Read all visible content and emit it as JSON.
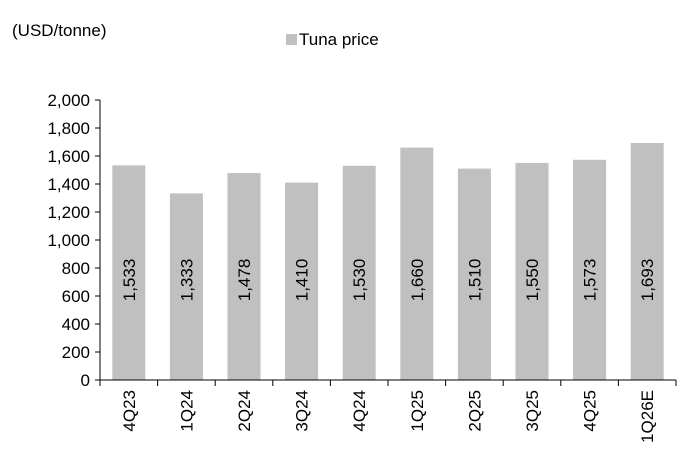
{
  "chart_data": {
    "type": "bar",
    "unit_label": "(USD/tonne)",
    "categories": [
      "4Q23",
      "1Q24",
      "2Q24",
      "3Q24",
      "4Q24",
      "1Q25",
      "2Q25",
      "3Q25",
      "4Q25",
      "1Q26E"
    ],
    "series": [
      {
        "name": "Tuna price",
        "color": "#c0c0c0",
        "values": [
          1533,
          1333,
          1478,
          1410,
          1530,
          1660,
          1510,
          1550,
          1573,
          1693
        ]
      }
    ],
    "data_labels": [
      "1,533",
      "1,333",
      "1,478",
      "1,410",
      "1,530",
      "1,660",
      "1,510",
      "1,550",
      "1,573",
      "1,693"
    ],
    "yticks": [
      "0",
      "200",
      "400",
      "600",
      "800",
      "1,000",
      "1,200",
      "1,400",
      "1,600",
      "1,800",
      "2,000"
    ],
    "ylim": [
      0,
      2000
    ],
    "grid": false,
    "legend_position": "top"
  }
}
